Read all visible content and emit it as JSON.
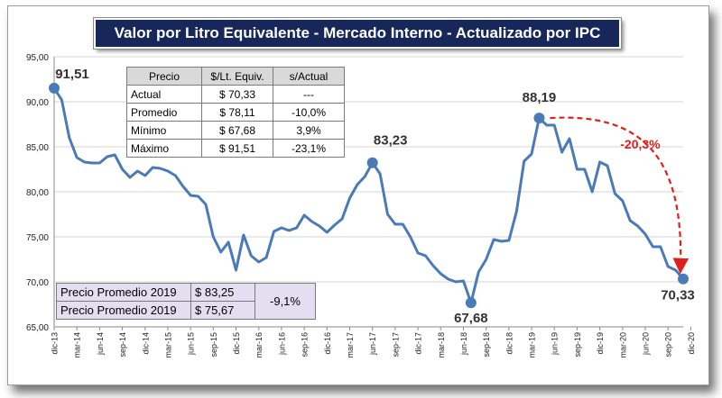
{
  "title": "Valor por Litro Equivalente - Mercado Interno - Actualizado por IPC",
  "summary_table": {
    "headers": [
      "Precio",
      "$/Lt. Equiv.",
      "s/Actual"
    ],
    "rows": [
      [
        "Actual",
        "$ 70,33",
        "---"
      ],
      [
        "Promedio",
        "$ 78,11",
        "-10,0%"
      ],
      [
        "Mínimo",
        "$ 67,68",
        "3,9%"
      ],
      [
        "Máximo",
        "$ 91,51",
        "-23,1%"
      ]
    ]
  },
  "avg_table": {
    "rows": [
      [
        "Precio Promedio 2019",
        "$ 83,25"
      ],
      [
        "Precio Promedio 2019",
        "$ 75,67"
      ]
    ],
    "change": "-9,1%"
  },
  "colors": {
    "line": "#4a7ab8",
    "title_bg": "#17275a",
    "arrow": "#e0201a",
    "grid": "#d4d4d4"
  },
  "chart_data": {
    "type": "line",
    "title": "Valor por Litro Equivalente - Mercado Interno - Actualizado por IPC",
    "xlabel": "",
    "ylabel": "",
    "ylim": [
      65,
      95
    ],
    "yticks": [
      "65,00",
      "70,00",
      "75,00",
      "80,00",
      "85,00",
      "90,00",
      "95,00"
    ],
    "grid": true,
    "x_tick_labels": [
      "dic-13",
      "mar-14",
      "jun-14",
      "sep-14",
      "dic-14",
      "mar-15",
      "jun-15",
      "sep-15",
      "dic-15",
      "mar-16",
      "jun-16",
      "sep-16",
      "dic-16",
      "mar-17",
      "jun-17",
      "sep-17",
      "dic-17",
      "mar-18",
      "jun-18",
      "sep-18",
      "dic-18",
      "mar-19",
      "jun-19",
      "sep-19",
      "dic-19",
      "mar-20",
      "jun-20",
      "sep-20",
      "dic-20"
    ],
    "series": [
      {
        "values": [
          91.51,
          90.2,
          86.0,
          83.8,
          83.3,
          83.2,
          83.2,
          83.9,
          84.1,
          82.5,
          81.6,
          82.3,
          81.8,
          82.7,
          82.6,
          82.3,
          81.8,
          80.6,
          79.6,
          79.5,
          78.6,
          75.0,
          73.3,
          74.4,
          71.3,
          75.2,
          72.9,
          72.2,
          72.7,
          75.6,
          76.0,
          75.7,
          76.0,
          77.4,
          76.7,
          76.2,
          75.5,
          76.3,
          77.0,
          79.3,
          80.8,
          81.7,
          83.23,
          82.0,
          77.5,
          76.4,
          76.4,
          75.0,
          73.2,
          72.9,
          71.8,
          70.9,
          70.3,
          70.0,
          70.1,
          67.68,
          71.1,
          72.5,
          74.7,
          74.5,
          74.6,
          77.8,
          83.4,
          84.2,
          88.19,
          87.4,
          87.4,
          84.4,
          85.9,
          82.5,
          82.5,
          80.0,
          83.3,
          82.9,
          79.8,
          79.0,
          76.8,
          76.2,
          75.3,
          73.9,
          73.9,
          71.7,
          71.3,
          70.33
        ]
      }
    ],
    "point_labels": [
      {
        "index": 0,
        "text": "91,51"
      },
      {
        "index": 42,
        "text": "83,23"
      },
      {
        "index": 55,
        "text": "67,68"
      },
      {
        "index": 64,
        "text": "88,19"
      },
      {
        "index": 83,
        "text": "70,33"
      }
    ],
    "annotation": {
      "text": "-20,3%",
      "from_index": 64,
      "to_index": 83
    }
  }
}
